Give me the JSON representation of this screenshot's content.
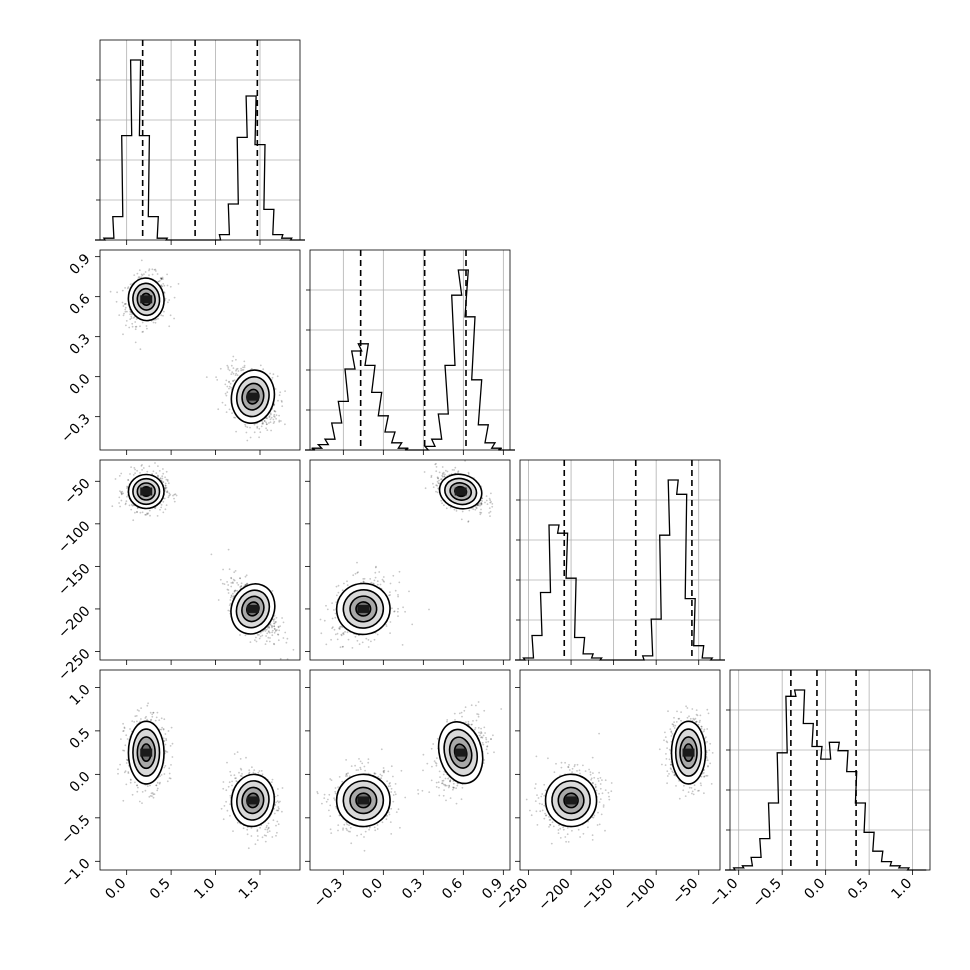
{
  "chart_data": {
    "type": "corner",
    "grid": true,
    "parameters": [
      {
        "range": [
          -0.3,
          1.95
        ],
        "ticks": [
          0.0,
          0.5,
          1.0,
          1.5
        ],
        "tick_labels": [
          "0.0",
          "0.5",
          "1.0",
          "1.5"
        ],
        "quantiles": [
          0.18,
          0.77,
          1.47
        ],
        "modes": [
          {
            "mean": 0.22,
            "sd": 0.1,
            "w": 0.5
          },
          {
            "mean": 1.42,
            "sd": 0.12,
            "w": 0.5
          }
        ],
        "hist": [
          [
            -0.3,
            0
          ],
          [
            -0.2,
            0.01
          ],
          [
            -0.1,
            0.13
          ],
          [
            0.0,
            0.58
          ],
          [
            0.1,
            1.0
          ],
          [
            0.2,
            0.58
          ],
          [
            0.3,
            0.13
          ],
          [
            0.4,
            0.01
          ],
          [
            0.5,
            0
          ],
          [
            1.0,
            0
          ],
          [
            1.1,
            0.03
          ],
          [
            1.2,
            0.2
          ],
          [
            1.3,
            0.57
          ],
          [
            1.4,
            0.8
          ],
          [
            1.5,
            0.53
          ],
          [
            1.6,
            0.17
          ],
          [
            1.7,
            0.03
          ],
          [
            1.8,
            0.01
          ],
          [
            1.9,
            0
          ],
          [
            1.95,
            0
          ]
        ]
      },
      {
        "range": [
          -0.55,
          0.95
        ],
        "ticks": [
          -0.3,
          0.0,
          0.3,
          0.6,
          0.9
        ],
        "tick_labels": [
          "−0.3",
          "0.0",
          "0.3",
          "0.6",
          "0.9"
        ],
        "quantiles": [
          -0.17,
          0.31,
          0.62
        ],
        "modes": [
          {
            "mean": -0.15,
            "sd": 0.1,
            "w": 0.5
          },
          {
            "mean": 0.58,
            "sd": 0.08,
            "w": 0.5
          }
        ],
        "hist": [
          [
            -0.55,
            0
          ],
          [
            -0.5,
            0.01
          ],
          [
            -0.45,
            0.03
          ],
          [
            -0.4,
            0.06
          ],
          [
            -0.35,
            0.15
          ],
          [
            -0.3,
            0.27
          ],
          [
            -0.25,
            0.45
          ],
          [
            -0.2,
            0.55
          ],
          [
            -0.15,
            0.59
          ],
          [
            -0.1,
            0.47
          ],
          [
            -0.05,
            0.32
          ],
          [
            0.0,
            0.19
          ],
          [
            0.05,
            0.1
          ],
          [
            0.1,
            0.04
          ],
          [
            0.15,
            0.01
          ],
          [
            0.2,
            0
          ],
          [
            0.3,
            0
          ],
          [
            0.35,
            0.02
          ],
          [
            0.4,
            0.06
          ],
          [
            0.45,
            0.2
          ],
          [
            0.5,
            0.47
          ],
          [
            0.55,
            0.86
          ],
          [
            0.6,
            1.0
          ],
          [
            0.65,
            0.74
          ],
          [
            0.7,
            0.39
          ],
          [
            0.75,
            0.14
          ],
          [
            0.8,
            0.04
          ],
          [
            0.85,
            0.01
          ],
          [
            0.9,
            0
          ],
          [
            0.95,
            0
          ]
        ]
      },
      {
        "range": [
          -260,
          -25
        ],
        "ticks": [
          -250,
          -200,
          -150,
          -100,
          -50
        ],
        "tick_labels": [
          "−250",
          "−200",
          "−150",
          "−100",
          "−50"
        ],
        "quantiles": [
          -208,
          -124,
          -58
        ],
        "modes": [
          {
            "mean": -200,
            "sd": 15,
            "w": 0.5
          },
          {
            "mean": -62,
            "sd": 10,
            "w": 0.5
          }
        ],
        "hist": [
          [
            -260,
            0
          ],
          [
            -250,
            0.01
          ],
          [
            -240,
            0.12
          ],
          [
            -230,
            0.33
          ],
          [
            -220,
            0.66
          ],
          [
            -210,
            0.62
          ],
          [
            -200,
            0.4
          ],
          [
            -190,
            0.11
          ],
          [
            -180,
            0.03
          ],
          [
            -170,
            0.01
          ],
          [
            -160,
            0
          ],
          [
            -120,
            0
          ],
          [
            -110,
            0.02
          ],
          [
            -100,
            0.2
          ],
          [
            -90,
            0.61
          ],
          [
            -80,
            0.88
          ],
          [
            -70,
            0.81
          ],
          [
            -60,
            0.3
          ],
          [
            -50,
            0.07
          ],
          [
            -40,
            0.01
          ],
          [
            -30,
            0
          ],
          [
            -25,
            0
          ]
        ]
      },
      {
        "range": [
          -1.1,
          1.2
        ],
        "ticks": [
          -1.0,
          -0.5,
          0.0,
          0.5,
          1.0
        ],
        "tick_labels": [
          "−1.0",
          "−0.5",
          "0.0",
          "0.5",
          "1.0"
        ],
        "quantiles": [
          -0.4,
          -0.1,
          0.35
        ],
        "modes": [
          {
            "mean": -0.3,
            "sd": 0.15,
            "w": 0.5
          },
          {
            "mean": 0.25,
            "sd": 0.18,
            "w": 0.5
          }
        ],
        "hist": [
          [
            -1.1,
            0
          ],
          [
            -1.0,
            0.01
          ],
          [
            -0.9,
            0.02
          ],
          [
            -0.8,
            0.06
          ],
          [
            -0.7,
            0.15
          ],
          [
            -0.6,
            0.32
          ],
          [
            -0.5,
            0.56
          ],
          [
            -0.4,
            0.83
          ],
          [
            -0.3,
            0.86
          ],
          [
            -0.2,
            0.7
          ],
          [
            -0.1,
            0.59
          ],
          [
            0.0,
            0.53
          ],
          [
            0.1,
            0.61
          ],
          [
            0.2,
            0.57
          ],
          [
            0.3,
            0.47
          ],
          [
            0.4,
            0.32
          ],
          [
            0.5,
            0.18
          ],
          [
            0.6,
            0.09
          ],
          [
            0.7,
            0.04
          ],
          [
            0.8,
            0.02
          ],
          [
            0.9,
            0.01
          ],
          [
            1.0,
            0
          ],
          [
            1.1,
            0
          ]
        ]
      }
    ],
    "blobs": [
      {
        "pair": [
          0,
          1
        ],
        "x": 0.22,
        "y": 0.58,
        "sx": 0.1,
        "sy": 0.08,
        "rho": 0.15
      },
      {
        "pair": [
          0,
          1
        ],
        "x": 1.42,
        "y": -0.15,
        "sx": 0.12,
        "sy": 0.1,
        "rho": -0.3
      },
      {
        "pair": [
          0,
          2
        ],
        "x": 0.22,
        "y": -62,
        "sx": 0.1,
        "sy": 10,
        "rho": 0.0
      },
      {
        "pair": [
          0,
          2
        ],
        "x": 1.42,
        "y": -200,
        "sx": 0.12,
        "sy": 15,
        "rho": -0.6
      },
      {
        "pair": [
          1,
          2
        ],
        "x": 0.58,
        "y": -62,
        "sx": 0.08,
        "sy": 10,
        "rho": -0.4
      },
      {
        "pair": [
          1,
          2
        ],
        "x": -0.15,
        "y": -200,
        "sx": 0.1,
        "sy": 15,
        "rho": 0.2
      },
      {
        "pair": [
          0,
          3
        ],
        "x": 0.22,
        "y": 0.25,
        "sx": 0.1,
        "sy": 0.18,
        "rho": 0.0
      },
      {
        "pair": [
          0,
          3
        ],
        "x": 1.42,
        "y": -0.3,
        "sx": 0.12,
        "sy": 0.15,
        "rho": -0.2
      },
      {
        "pair": [
          1,
          3
        ],
        "x": -0.15,
        "y": -0.3,
        "sx": 0.1,
        "sy": 0.15,
        "rho": 0.1
      },
      {
        "pair": [
          1,
          3
        ],
        "x": 0.58,
        "y": 0.25,
        "sx": 0.08,
        "sy": 0.18,
        "rho": 0.4
      },
      {
        "pair": [
          2,
          3
        ],
        "x": -200,
        "y": -0.3,
        "sx": 15,
        "sy": 0.15,
        "rho": 0.1
      },
      {
        "pair": [
          2,
          3
        ],
        "x": -62,
        "y": 0.25,
        "sx": 10,
        "sy": 0.18,
        "rho": 0.0
      }
    ]
  }
}
